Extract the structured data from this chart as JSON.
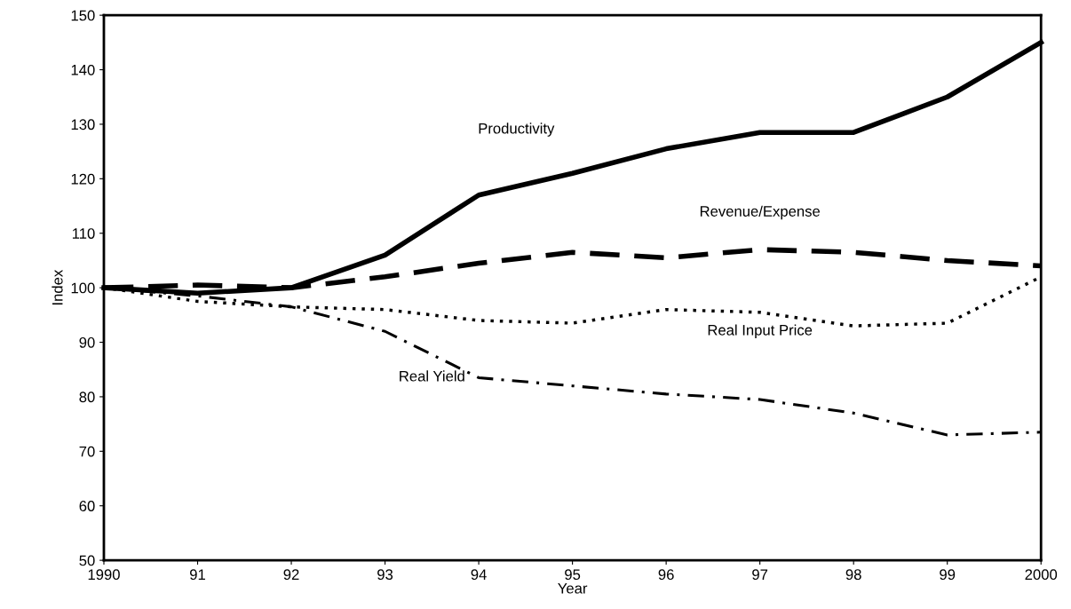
{
  "chart_data": {
    "type": "line",
    "xlabel": "Year",
    "ylabel": "Index",
    "x": [
      1990,
      1991,
      1992,
      1993,
      1994,
      1995,
      1996,
      1997,
      1998,
      1999,
      2000
    ],
    "series": [
      {
        "name": "Productivity",
        "color": "#000000",
        "line_style": "solid",
        "values": [
          100,
          99,
          100,
          106,
          117,
          121,
          125.5,
          128.5,
          128.5,
          135,
          145
        ]
      },
      {
        "name": "Revenue/Expense",
        "color": "#000000",
        "line_style": "dashed",
        "values": [
          100,
          100.5,
          100,
          102,
          104.5,
          106.5,
          105.5,
          107,
          106.5,
          105,
          104
        ]
      },
      {
        "name": "Real Input Price",
        "color": "#000000",
        "line_style": "dotted",
        "values": [
          100,
          97.5,
          96.5,
          96,
          94,
          93.5,
          96,
          95.5,
          93,
          93.5,
          102
        ]
      },
      {
        "name": "Real Yield",
        "color": "#000000",
        "line_style": "dashdot",
        "values": [
          100,
          98.5,
          96.5,
          92,
          83.5,
          82,
          80.5,
          79.5,
          77,
          73,
          73.5
        ]
      }
    ],
    "xlim": [
      1990,
      2000
    ],
    "ylim": [
      50,
      150
    ],
    "xticks": [
      1990,
      {
        "value": 1991,
        "label": "91"
      },
      {
        "value": 1992,
        "label": "92"
      },
      {
        "value": 1993,
        "label": "93"
      },
      {
        "value": 1994,
        "label": "94"
      },
      {
        "value": 1995,
        "label": "95"
      },
      {
        "value": 1996,
        "label": "96"
      },
      {
        "value": 1997,
        "label": "97"
      },
      {
        "value": 1998,
        "label": "98"
      },
      {
        "value": 1999,
        "label": "99"
      },
      2000
    ],
    "yticks": [
      50,
      60,
      70,
      80,
      90,
      100,
      110,
      120,
      130,
      140,
      150
    ],
    "grid": false,
    "legend": false,
    "marker": "none"
  }
}
